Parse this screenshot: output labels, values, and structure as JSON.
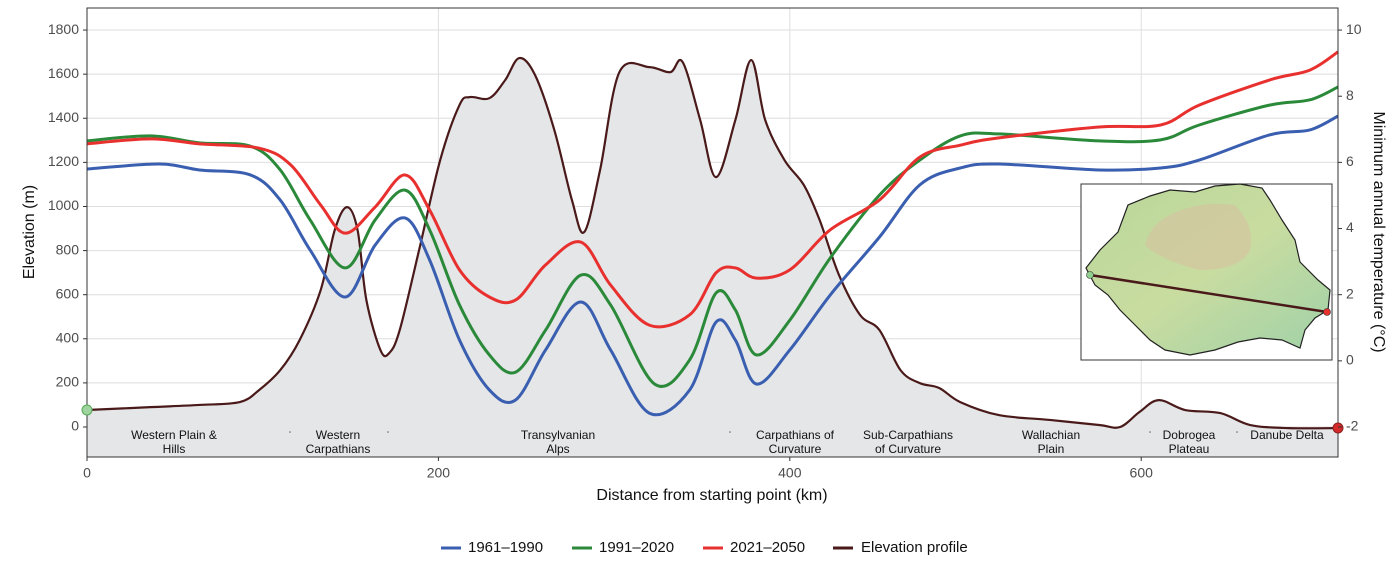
{
  "chart_data": {
    "type": "line",
    "x_label": "Distance from starting point (km)",
    "y_label": "Elevation (m)",
    "y2_label": "Minimum annual temperature (°C)",
    "xlim": [
      0,
      712
    ],
    "xticks": [
      0,
      200,
      400,
      600
    ],
    "ylim": [
      -136,
      1900
    ],
    "yticks": [
      0,
      200,
      400,
      600,
      800,
      1000,
      1200,
      1400,
      1600,
      1800
    ],
    "y2lim": [
      -2.907,
      10.667
    ],
    "y2ticks": [
      -2,
      0,
      2,
      4,
      6,
      8,
      10
    ],
    "grid": true,
    "legend": "bottom",
    "regions": [
      [
        "Western Plain &",
        "Hills"
      ],
      [
        "Western",
        "Carpathians"
      ],
      [
        "Transylvanian",
        "Alps"
      ],
      [
        "Carpathians of",
        "Curvature"
      ],
      [
        "Sub-Carpathians",
        "of Curvature"
      ],
      [
        "Wallachian",
        "Plain"
      ],
      [
        "Dobrogea",
        "Plateau"
      ],
      [
        "Danube Delta"
      ]
    ],
    "series": [
      {
        "name": "1961–1990",
        "color": "#3a5fb0",
        "axis": "y2",
        "x": [
          0,
          41,
          64,
          93,
          110,
          127,
          147,
          164,
          181,
          195,
          212,
          229,
          244,
          261,
          281,
          298,
          320,
          343,
          358,
          369,
          381,
          400,
          423,
          451,
          474,
          497,
          519,
          576,
          611,
          633,
          673,
          696,
          712
        ],
        "values": [
          5.8,
          5.95,
          5.77,
          5.62,
          4.86,
          3.35,
          1.93,
          3.5,
          4.32,
          3.05,
          0.63,
          -0.88,
          -1.18,
          0.33,
          1.78,
          0.33,
          -1.58,
          -0.88,
          1.17,
          0.63,
          -0.7,
          0.33,
          1.99,
          3.74,
          5.32,
          5.83,
          5.95,
          5.77,
          5.83,
          6.07,
          6.83,
          6.98,
          7.4
        ]
      },
      {
        "name": "1991–2020",
        "color": "#2b8a3a",
        "axis": "y2",
        "x": [
          0,
          36,
          64,
          93,
          110,
          127,
          147,
          164,
          181,
          195,
          212,
          229,
          244,
          261,
          281,
          298,
          323,
          343,
          358,
          369,
          381,
          400,
          423,
          451,
          474,
          497,
          519,
          576,
          611,
          633,
          673,
          696,
          712
        ],
        "values": [
          6.65,
          6.8,
          6.59,
          6.49,
          5.77,
          4.26,
          2.81,
          4.26,
          5.16,
          3.96,
          1.69,
          0.18,
          -0.34,
          0.93,
          2.59,
          1.69,
          -0.7,
          0.03,
          2.05,
          1.54,
          0.18,
          1.23,
          3.11,
          5.01,
          6.07,
          6.8,
          6.86,
          6.65,
          6.68,
          7.13,
          7.73,
          7.89,
          8.28
        ]
      },
      {
        "name": "2021–2050",
        "color": "#e8312f",
        "axis": "y2",
        "x": [
          0,
          36,
          64,
          98,
          116,
          133,
          147,
          164,
          181,
          195,
          212,
          229,
          244,
          261,
          281,
          298,
          320,
          343,
          358,
          369,
          381,
          400,
          423,
          451,
          474,
          497,
          519,
          576,
          611,
          633,
          673,
          696,
          712
        ],
        "values": [
          6.56,
          6.71,
          6.56,
          6.43,
          5.92,
          4.71,
          3.86,
          4.65,
          5.62,
          4.56,
          2.75,
          1.93,
          1.84,
          2.9,
          3.59,
          2.29,
          1.08,
          1.39,
          2.66,
          2.81,
          2.5,
          2.75,
          3.96,
          4.86,
          6.16,
          6.52,
          6.74,
          7.07,
          7.13,
          7.73,
          8.49,
          8.79,
          9.34
        ]
      },
      {
        "name": "Elevation profile",
        "color": "#4a1a1a",
        "axis": "y",
        "fill": "#e5e6e8",
        "x": [
          0,
          36,
          64,
          87,
          98,
          110,
          121,
          133,
          141,
          148,
          154,
          159,
          167,
          172,
          178,
          189,
          201,
          212,
          218,
          229,
          238,
          246,
          255,
          266,
          276,
          283,
          292,
          303,
          320,
          332,
          339,
          349,
          358,
          369,
          378,
          386,
          397,
          408,
          417,
          428,
          440,
          451,
          463,
          474,
          485,
          497,
          519,
          548,
          576,
          588,
          599,
          610,
          625,
          645,
          662,
          684,
          712
        ],
        "values": [
          77,
          90,
          100,
          113,
          168,
          258,
          394,
          621,
          893,
          997,
          893,
          576,
          349,
          335,
          440,
          802,
          1210,
          1460,
          1496,
          1491,
          1573,
          1673,
          1596,
          1346,
          1029,
          884,
          1165,
          1609,
          1632,
          1609,
          1655,
          1392,
          1133,
          1392,
          1664,
          1392,
          1210,
          1097,
          938,
          689,
          508,
          440,
          258,
          199,
          177,
          113,
          54,
          32,
          9,
          0,
          68,
          122,
          77,
          63,
          9,
          -5,
          -5
        ]
      }
    ]
  }
}
